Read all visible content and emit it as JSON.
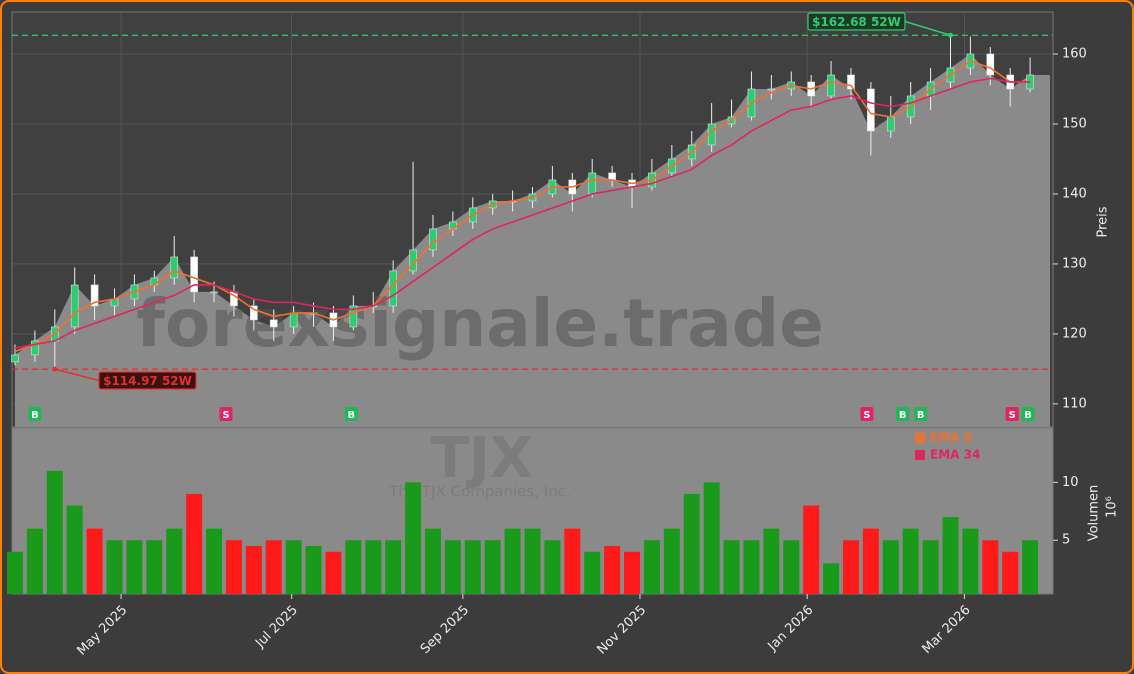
{
  "chart_data": {
    "type": "candlestick",
    "watermark": "forexsignale.trade",
    "ticker": "TJX",
    "company": "The TJX Companies, Inc.",
    "ylabel": "Preis",
    "volume_label": "Volumen",
    "volume_unit": "10⁶",
    "x": [
      0,
      1,
      2,
      3,
      4,
      5,
      6,
      7,
      8,
      9,
      10,
      11,
      12,
      13,
      14,
      15,
      16,
      17,
      18,
      19,
      20,
      21,
      22,
      23,
      24,
      25,
      26,
      27,
      28,
      29,
      30,
      31,
      32,
      33,
      34,
      35,
      36,
      37,
      38,
      39,
      40,
      41,
      42,
      43,
      44,
      45,
      46,
      47,
      48,
      49,
      50,
      51
    ],
    "xlim": [
      -0.15,
      52.15
    ],
    "xticks": [
      {
        "value": 5.33,
        "label": "May 2025"
      },
      {
        "value": 13.9,
        "label": "Jul 2025"
      },
      {
        "value": 22.5,
        "label": "Sep 2025"
      },
      {
        "value": 31.4,
        "label": "Nov 2025"
      },
      {
        "value": 39.8,
        "label": "Jan 2026"
      },
      {
        "value": 47.7,
        "label": "Mar 2026"
      }
    ],
    "open": [
      116,
      117,
      119,
      121,
      127,
      124,
      125,
      127,
      128,
      131,
      126,
      126,
      124,
      122,
      121,
      123,
      123,
      121,
      124,
      124,
      129,
      132,
      135,
      136,
      138,
      139,
      139,
      140,
      142,
      140,
      143,
      142,
      141,
      143,
      145,
      147,
      150,
      151,
      155,
      155,
      156,
      154,
      157,
      155,
      149,
      151,
      154,
      156,
      158,
      160,
      157,
      155
    ],
    "high": [
      118.5,
      120.5,
      123.5,
      129.5,
      128.5,
      126.5,
      128.5,
      129,
      134,
      132,
      127.5,
      127,
      125,
      123.5,
      124,
      124.5,
      124,
      125.5,
      126,
      130.5,
      144.6,
      137,
      137.5,
      139.5,
      140,
      140.5,
      141,
      144,
      143,
      145,
      144,
      143,
      145,
      147,
      149,
      153,
      153.5,
      157.5,
      157,
      157.5,
      157,
      159,
      158,
      156,
      154,
      156,
      158,
      162.68,
      162.5,
      161,
      158,
      159.5
    ],
    "low": [
      115.5,
      116,
      114.97,
      120,
      122,
      122.5,
      124,
      126,
      127,
      124.5,
      124.5,
      122.5,
      120.5,
      119,
      120,
      121,
      119,
      120.5,
      123,
      123,
      128.5,
      131,
      134,
      135,
      137,
      137.5,
      138,
      139.5,
      137.5,
      139.5,
      141,
      138,
      140.5,
      142.5,
      144,
      146,
      149.5,
      150.5,
      153.5,
      154,
      152.5,
      153.5,
      153.5,
      145.5,
      148,
      150,
      152,
      155,
      157,
      155.5,
      152.5,
      154.5
    ],
    "close": [
      117,
      119,
      121,
      127,
      124,
      125,
      127,
      128,
      131,
      126,
      126,
      124,
      122,
      121,
      123,
      123,
      121,
      124,
      124,
      129,
      132,
      135,
      136,
      138,
      139,
      139,
      140,
      142,
      140,
      143,
      142,
      141,
      143,
      145,
      147,
      150,
      151,
      155,
      155,
      156,
      154,
      157,
      155,
      149,
      151,
      154,
      156,
      158,
      160,
      157,
      155,
      157
    ],
    "ylim": [
      106.7,
      166
    ],
    "yticks": [
      110,
      120,
      130,
      140,
      150,
      160
    ],
    "series": [
      {
        "name": "EMA 8",
        "color": "#f07030",
        "values": [
          117.5,
          118.5,
          120,
          123,
          124.5,
          125,
          126,
          127,
          129,
          128,
          127,
          125.5,
          123.5,
          122.5,
          123,
          123,
          122,
          123,
          124,
          127,
          130,
          133,
          135,
          137,
          138.5,
          139,
          139.5,
          141,
          141,
          142,
          142,
          141.5,
          142,
          144,
          146,
          149,
          150.5,
          153,
          154.5,
          155.5,
          155,
          156,
          155.5,
          151.5,
          151,
          152.5,
          155,
          157,
          159,
          158,
          156,
          156
        ]
      },
      {
        "name": "EMA 34",
        "color": "#e0245e",
        "values": [
          118,
          118.5,
          119,
          120.5,
          121.5,
          122.5,
          123.5,
          124.5,
          125.5,
          127,
          127,
          126,
          125,
          124.5,
          124.5,
          124,
          123.5,
          123.5,
          124,
          125.5,
          127.5,
          129.5,
          131.5,
          133.5,
          135,
          136,
          137,
          138,
          139,
          140,
          140.5,
          141,
          141.5,
          142.5,
          143.5,
          145.5,
          147,
          149,
          150.5,
          152,
          152.5,
          153.5,
          154,
          153,
          152.5,
          153,
          154,
          155,
          156,
          156.5,
          156,
          156
        ]
      }
    ],
    "volume": [
      4,
      6,
      11,
      8,
      6,
      5,
      5,
      5,
      6,
      9,
      6,
      5,
      4.5,
      5,
      5,
      4.5,
      4,
      5,
      5,
      5,
      10,
      6,
      5,
      5,
      5,
      6,
      6,
      5,
      6,
      4,
      4.5,
      4,
      5,
      6,
      9,
      10,
      5,
      5,
      6,
      5,
      8,
      3,
      5,
      6,
      5,
      6,
      5,
      7,
      6,
      5,
      4,
      5
    ],
    "volume_ylim": [
      0.35,
      14.7
    ],
    "volume_yticks": [
      5,
      10
    ],
    "up_color": "#1a9a1a",
    "down_color": "#ff1a1a",
    "annotations": [
      {
        "text": "$162.68 52W",
        "value": 162.68,
        "x": 47,
        "color": "#2ecc71"
      },
      {
        "text": "$114.97 52W",
        "value": 114.97,
        "x": 2,
        "color": "#e03030"
      }
    ],
    "signals": [
      {
        "x": 1,
        "label": "B"
      },
      {
        "x": 10.6,
        "label": "S"
      },
      {
        "x": 16.9,
        "label": "B"
      },
      {
        "x": 42.8,
        "label": "S"
      },
      {
        "x": 44.6,
        "label": "B"
      },
      {
        "x": 45.5,
        "label": "B"
      },
      {
        "x": 50.1,
        "label": "S"
      },
      {
        "x": 50.9,
        "label": "B"
      }
    ],
    "grid": true
  }
}
